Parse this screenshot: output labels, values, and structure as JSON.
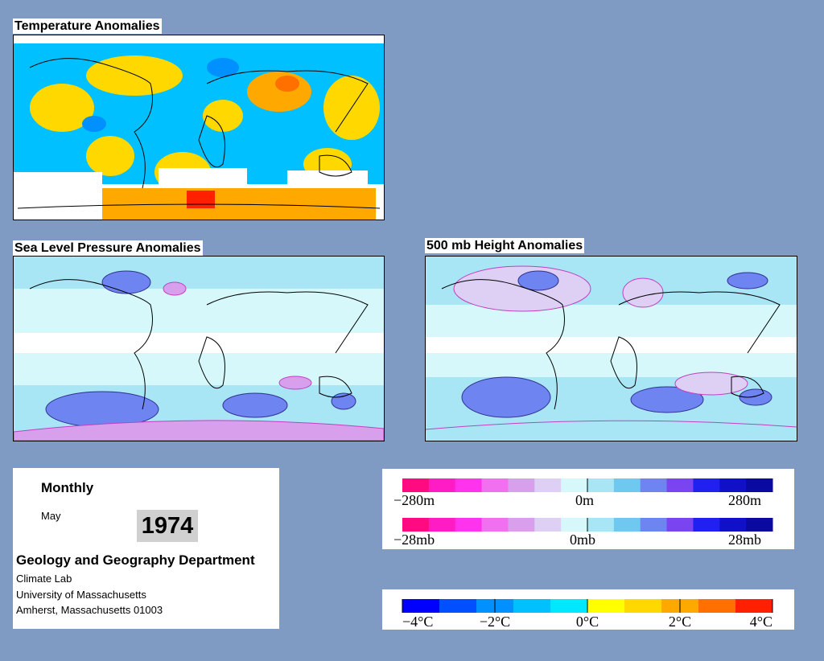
{
  "panels": {
    "temperature": {
      "title": "Temperature Anomalies"
    },
    "slp": {
      "title": "Sea Level Pressure Anomalies"
    },
    "height500": {
      "title": "500 mb Height Anomalies"
    }
  },
  "info": {
    "period_label": "Monthly",
    "month": "May",
    "year": "1974",
    "department": "Geology and Geography Department",
    "lab": "Climate Lab",
    "university": "University of Massachusetts",
    "address": "Amherst, Massachusetts 01003"
  },
  "legends": {
    "height": {
      "left": "−280m",
      "mid": "0m",
      "right": "280m"
    },
    "pressure": {
      "left": "−28mb",
      "mid": "0mb",
      "right": "28mb"
    },
    "temperature": {
      "labels": [
        "−4°C",
        "−2°C",
        "0°C",
        "2°C",
        "4°C"
      ]
    }
  },
  "colors": {
    "background": "#7f9bc4",
    "anomaly_scale": [
      "#ff0a80",
      "#ff1cc4",
      "#ff33ee",
      "#f070f0",
      "#d8a0ec",
      "#ddd0f4",
      "#d6f8fa",
      "#a9e6f5",
      "#6ec8f0",
      "#6e84f0",
      "#7a44f0",
      "#2020f0",
      "#1010c8",
      "#0a0aa0"
    ],
    "temperature_scale": [
      "#0000ff",
      "#0050ff",
      "#0090ff",
      "#00c0ff",
      "#00e8ff",
      "#ffff00",
      "#ffd800",
      "#ffa800",
      "#ff7000",
      "#ff2000"
    ]
  }
}
